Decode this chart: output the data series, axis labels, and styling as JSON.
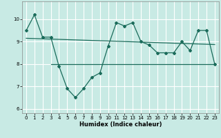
{
  "xlabel": "Humidex (Indice chaleur)",
  "x": [
    0,
    1,
    2,
    3,
    4,
    5,
    6,
    7,
    8,
    9,
    10,
    11,
    12,
    13,
    14,
    15,
    16,
    17,
    18,
    19,
    20,
    21,
    22,
    23
  ],
  "main_line": [
    9.5,
    10.2,
    9.2,
    9.2,
    7.9,
    6.9,
    6.5,
    6.9,
    7.4,
    7.6,
    8.8,
    9.85,
    9.7,
    9.85,
    9.0,
    8.85,
    8.5,
    8.5,
    8.5,
    9.0,
    8.6,
    9.5,
    9.5,
    8.0
  ],
  "trend1_x": [
    0,
    23
  ],
  "trend1_y": [
    9.15,
    8.87
  ],
  "trend2_x": [
    3,
    23
  ],
  "trend2_y": [
    8.0,
    8.0
  ],
  "bg_color": "#c8eae4",
  "line_color": "#1a6b5a",
  "grid_color": "#ffffff",
  "ylim": [
    5.8,
    10.8
  ],
  "xlim": [
    -0.5,
    23.5
  ],
  "yticks": [
    6,
    7,
    8,
    9,
    10
  ],
  "xticks": [
    0,
    1,
    2,
    3,
    4,
    5,
    6,
    7,
    8,
    9,
    10,
    11,
    12,
    13,
    14,
    15,
    16,
    17,
    18,
    19,
    20,
    21,
    22,
    23
  ]
}
